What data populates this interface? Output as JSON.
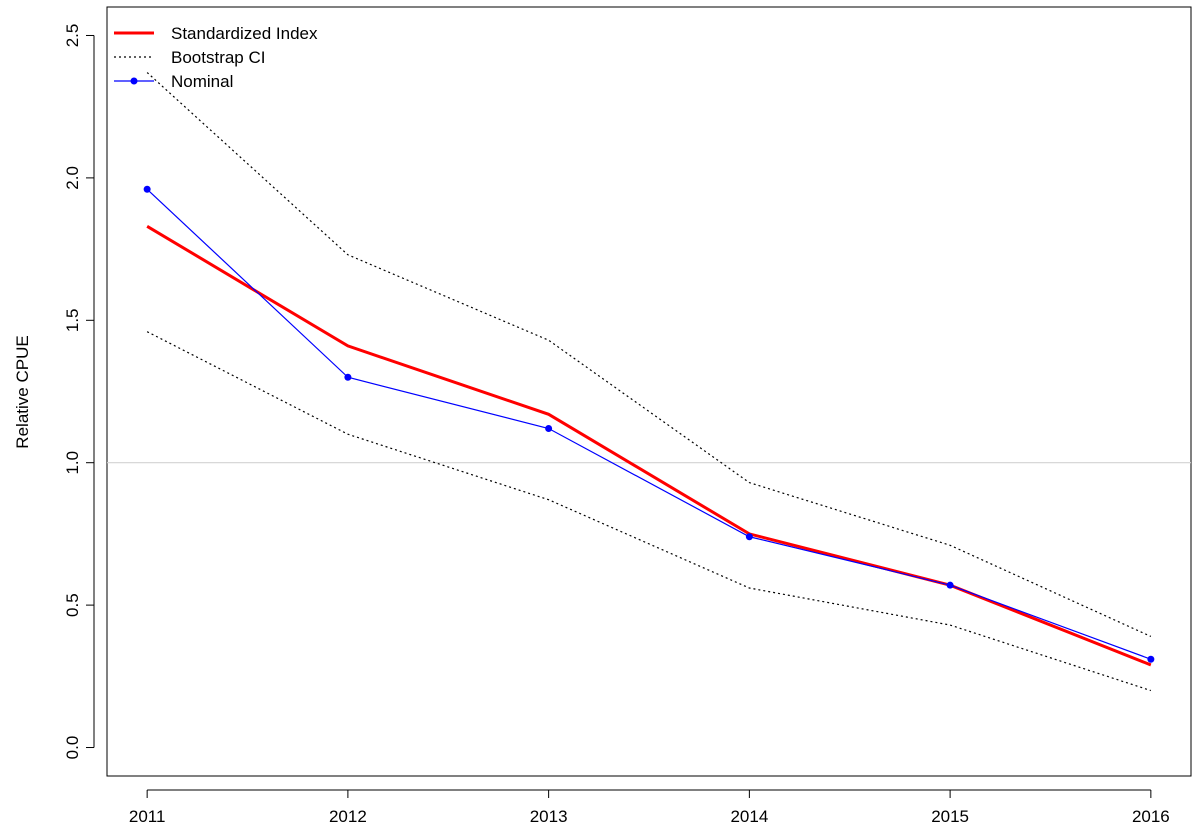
{
  "chart_data": {
    "type": "line",
    "title": "",
    "xlabel": "",
    "ylabel": "Relative CPUE",
    "x": [
      2011,
      2012,
      2013,
      2014,
      2015,
      2016
    ],
    "xticks": [
      "2011",
      "2012",
      "2013",
      "2014",
      "2015",
      "2016"
    ],
    "yticks": [
      "0.0",
      "0.5",
      "1.0",
      "1.5",
      "2.0",
      "2.5"
    ],
    "xlim": [
      2010.8,
      2016.2
    ],
    "ylim": [
      -0.1,
      2.6
    ],
    "reference_line": {
      "y": 1.0,
      "color": "#d3d3d3"
    },
    "grid": false,
    "legend_position": "top-left",
    "series": [
      {
        "name": "Standardized Index",
        "style": "solid",
        "color": "#ff0000",
        "values": [
          1.83,
          1.41,
          1.17,
          0.75,
          0.57,
          0.29
        ]
      },
      {
        "name": "Bootstrap CI",
        "style": "dotted",
        "color": "#000000",
        "values": [
          2.37,
          1.73,
          1.43,
          0.93,
          0.71,
          0.39
        ]
      },
      {
        "name": "",
        "style": "dotted",
        "color": "#000000",
        "values": [
          1.46,
          1.1,
          0.87,
          0.56,
          0.43,
          0.2
        ]
      },
      {
        "name": "Nominal",
        "style": "solid-markers",
        "color": "#0000ff",
        "values": [
          1.96,
          1.3,
          1.12,
          0.74,
          0.57,
          0.31
        ]
      }
    ]
  }
}
